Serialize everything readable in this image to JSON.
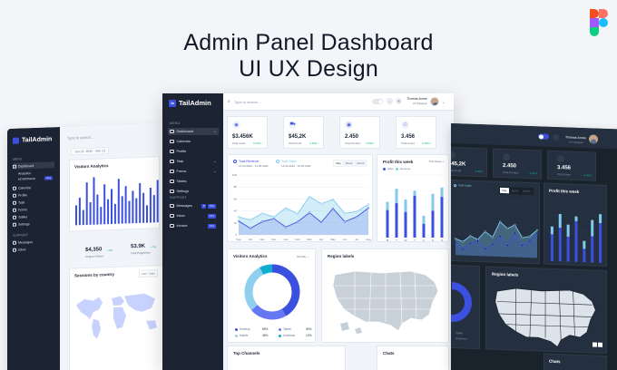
{
  "hero": {
    "line1": "Admin Panel Dashboard",
    "line2": "UI UX Design"
  },
  "brand": {
    "name": "TailAdmin",
    "logo_letter": "la"
  },
  "left_screen": {
    "search": "Type to search...",
    "date_range": "Jan 19, 2025 - Mar 21",
    "menu_heading": "MENU",
    "support_heading": "SUPPORT",
    "items": [
      {
        "label": "Dashboard",
        "active": true
      },
      {
        "label": "Analytics"
      },
      {
        "label": "eCommerce",
        "pro": true
      },
      {
        "label": "Calendar"
      },
      {
        "label": "Profile"
      },
      {
        "label": "Task"
      },
      {
        "label": "Forms"
      },
      {
        "label": "Tables"
      },
      {
        "label": "Settings"
      }
    ],
    "support_items": [
      {
        "label": "Messages"
      },
      {
        "label": "Inbox"
      }
    ],
    "visitors_title": "Visitors Analytics",
    "bar_values": [
      40,
      55,
      30,
      85,
      45,
      95,
      60,
      35,
      80,
      50,
      70,
      40,
      90,
      55,
      75,
      45,
      65,
      50,
      80,
      60,
      35,
      70,
      55,
      85
    ],
    "stat1_value": "$4,350",
    "stat1_label": "Unique Visitors",
    "stat1_change": "+5%",
    "stat2_value": "53.9K",
    "stat2_label": "Total Pageviews",
    "stat2_change": "+7%",
    "sessions_title": "Sessions by country",
    "sessions_filter": "Last 7 days"
  },
  "center_screen": {
    "search": "Type to search...",
    "user_name": "Thomas Anree",
    "user_role": "UX Designer",
    "menu_heading": "MENU",
    "support_heading": "SUPPORT",
    "items": [
      {
        "label": "Dashboard",
        "active": true,
        "chev": true
      },
      {
        "label": "Calendar"
      },
      {
        "label": "Profile"
      },
      {
        "label": "Task",
        "chev": true
      },
      {
        "label": "Forms",
        "chev": true
      },
      {
        "label": "Tables"
      },
      {
        "label": "Settings"
      }
    ],
    "support_items": [
      {
        "label": "Messages",
        "badge": "5",
        "pro": true
      },
      {
        "label": "Inbox",
        "pro": true
      },
      {
        "label": "Invoice",
        "pro": true
      }
    ],
    "stats": [
      {
        "icon": "eye-icon",
        "value": "$3.456K",
        "label": "Total views",
        "change": "0.43% ↑"
      },
      {
        "icon": "cart-icon",
        "value": "$45,2K",
        "label": "Total Profit",
        "change": "4.35% ↑"
      },
      {
        "icon": "bag-icon",
        "value": "2.450",
        "label": "Total Product",
        "change": "2.59% ↑"
      },
      {
        "icon": "users-icon",
        "value": "3.456",
        "label": "Total Users",
        "change": "0.95% ↑"
      }
    ],
    "revenue_chart": {
      "legend1": "Total Revenue",
      "legend1_sub": "12.04.2022 - 12.05.2022",
      "legend2": "Total Sales",
      "legend2_sub": "12.04.2022 - 12.05.2022",
      "seg": [
        "Day",
        "Week",
        "Month"
      ]
    },
    "profit_chart": {
      "title": "Profit this week",
      "filter": "This Week",
      "legend1": "Sales",
      "legend2": "Revenue"
    },
    "visitors": {
      "title": "Visitors Analytics",
      "filter": "Monthly",
      "legend": [
        {
          "label": "Desktop",
          "pct": "65%",
          "color": "#3c50e0"
        },
        {
          "label": "Tablet",
          "pct": "34%",
          "color": "#6577f3"
        },
        {
          "label": "Mobile",
          "pct": "45%",
          "color": "#8fd0ef"
        },
        {
          "label": "Unknown",
          "pct": "12%",
          "color": "#0fadcf"
        }
      ]
    },
    "region_title": "Region labels",
    "top_channels_title": "Top Channels",
    "chats_title": "Chats"
  },
  "right_screen": {
    "user_name": "Thomas Anree",
    "user_role": "UX Designer",
    "stats": [
      {
        "value": "$45,2K",
        "label": "Total Profit",
        "change": "4.35%"
      },
      {
        "value": "2.450",
        "label": "Total Product",
        "change": "2.59%"
      },
      {
        "value": "3.456",
        "label": "Total Users",
        "change": "0.95%"
      }
    ],
    "legend1": "Total Sales",
    "seg": [
      "Day",
      "Week",
      "Month"
    ],
    "profit_title": "Profit this week",
    "region_title": "Region labels",
    "chats_title": "Chats",
    "donut_legend": [
      "Tablet",
      "Unknown"
    ]
  },
  "chart_data": [
    {
      "type": "area",
      "x": [
        "Sep",
        "Oct",
        "Nov",
        "Dec",
        "Jan",
        "Feb",
        "Mar",
        "Apr",
        "May",
        "Jun",
        "Jul",
        "Aug"
      ],
      "series": [
        {
          "name": "Total Revenue",
          "values": [
            23,
            11,
            22,
            27,
            13,
            22,
            37,
            21,
            44,
            22,
            30,
            45
          ]
        },
        {
          "name": "Total Sales",
          "values": [
            30,
            25,
            36,
            30,
            45,
            35,
            64,
            52,
            59,
            36,
            39,
            51
          ]
        }
      ],
      "ylim": [
        0,
        100
      ]
    },
    {
      "type": "bar",
      "categories": [
        "M",
        "T",
        "W",
        "T",
        "F",
        "S",
        "S"
      ],
      "series": [
        {
          "name": "Sales",
          "values": [
            44,
            55,
            41,
            67,
            22,
            43,
            65
          ]
        },
        {
          "name": "Revenue",
          "values": [
            13,
            23,
            20,
            8,
            13,
            27,
            15
          ]
        }
      ],
      "ylim": [
        0,
        100
      ]
    },
    {
      "type": "pie",
      "categories": [
        "Desktop",
        "Tablet",
        "Mobile",
        "Unknown"
      ],
      "values": [
        65,
        34,
        45,
        12
      ]
    }
  ]
}
